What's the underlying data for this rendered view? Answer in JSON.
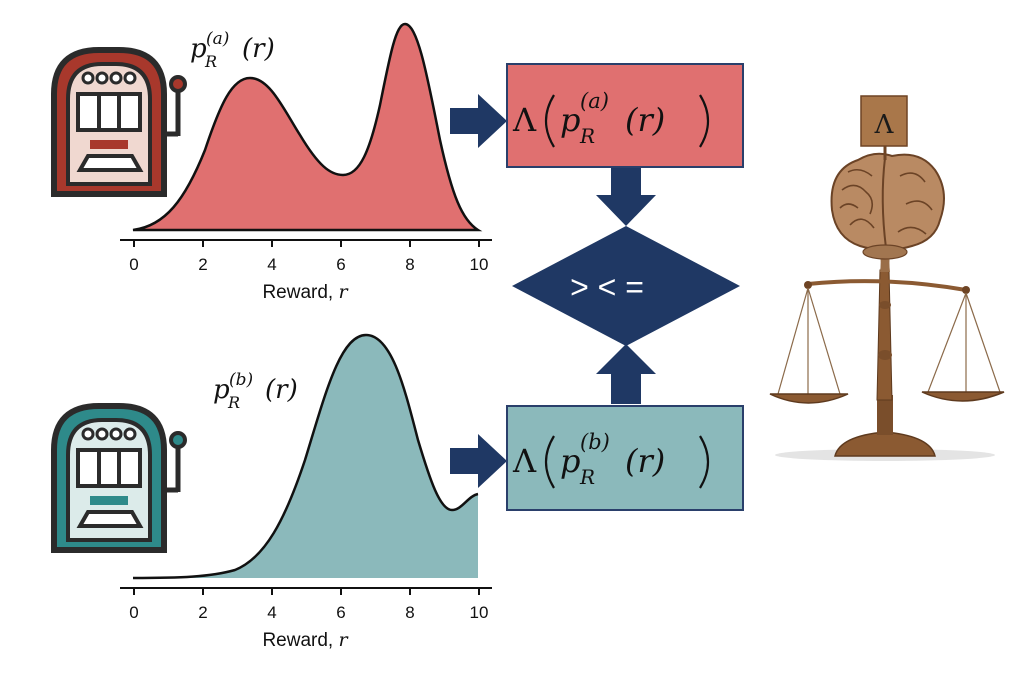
{
  "panels": {
    "a": {
      "density_label": {
        "p": "p",
        "sub": "R",
        "sup": "(a)",
        "arg": "(r)"
      },
      "fill": "#E07070",
      "xlabel": {
        "text": "Reward, ",
        "var": "r"
      },
      "ticks": [
        "0",
        "2",
        "4",
        "6",
        "8",
        "10"
      ],
      "box": {
        "lambda": "Λ",
        "p": "p",
        "sub": "R",
        "sup": "(a)",
        "arg": "(r)"
      }
    },
    "b": {
      "density_label": {
        "p": "p",
        "sub": "R",
        "sup": "(b)",
        "arg": "(r)"
      },
      "fill": "#8BB9BB",
      "xlabel": {
        "text": "Reward, ",
        "var": "r"
      },
      "ticks": [
        "0",
        "2",
        "4",
        "6",
        "8",
        "10"
      ],
      "box": {
        "lambda": "Λ",
        "p": "p",
        "sub": "R",
        "sup": "(b)",
        "arg": "(r)"
      }
    }
  },
  "compare": {
    "symbols": "> < ="
  },
  "judge": {
    "sign": "Λ"
  },
  "colors": {
    "arrow": "#1F3864",
    "diamond": "#1F3864",
    "box_stroke": "#2A3F6B",
    "machine_a": "#A8382C",
    "machine_b": "#2E8A8A",
    "machine_outline": "#2B2B2B",
    "wood": "#8B5A32"
  },
  "icons": [
    "slot-machine-icon",
    "brain-icon",
    "balance-scale-icon"
  ]
}
